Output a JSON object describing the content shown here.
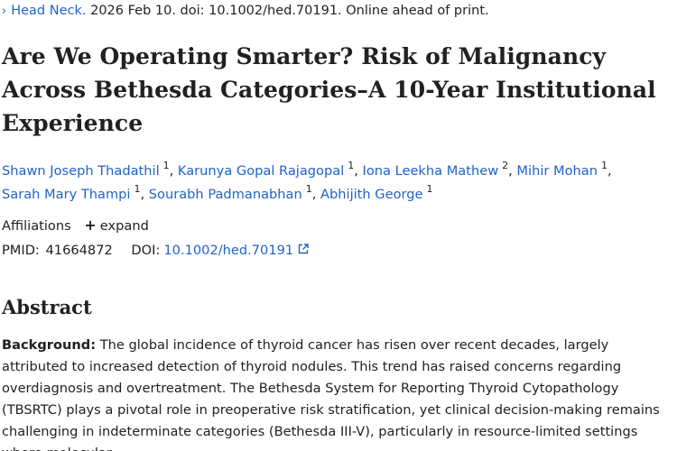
{
  "citation": {
    "chevron": "›",
    "journal": "Head Neck.",
    "details": "2026 Feb 10. doi: 10.1002/hed.70191. Online ahead of print."
  },
  "article": {
    "title": "Are We Operating Smarter? Risk of Malignancy Across Bethesda Categories–A 10-Year Institutional Experience"
  },
  "authors": [
    {
      "name": "Shawn Joseph Thadathil",
      "aff": "1"
    },
    {
      "name": "Karunya Gopal Rajagopal",
      "aff": "1"
    },
    {
      "name": "Iona Leekha Mathew",
      "aff": "2"
    },
    {
      "name": "Mihir Mohan",
      "aff": "1"
    },
    {
      "name": "Sarah Mary Thampi",
      "aff": "1"
    },
    {
      "name": "Sourabh Padmanabhan",
      "aff": "1"
    },
    {
      "name": "Abhijith George",
      "aff": "1"
    }
  ],
  "affiliations": {
    "label": "Affiliations",
    "plus": "+",
    "expand_label": "expand"
  },
  "identifiers": {
    "pmid_label": "PMID:",
    "pmid": "41664872",
    "doi_label": "DOI:",
    "doi": "10.1002/hed.70191",
    "external_icon": "external-link-icon"
  },
  "abstract": {
    "heading": "Abstract",
    "background_label": "Background:",
    "background_text": "The global incidence of thyroid cancer has risen over recent decades, largely attributed to increased detection of thyroid nodules. This trend has raised concerns regarding overdiagnosis and overtreatment. The Bethesda System for Reporting Thyroid Cytopathology (TBSRTC) plays a pivotal role in preoperative risk stratification, yet clinical decision-making remains challenging in indeterminate categories (Bethesda III-V), particularly in resource-limited settings where molecular"
  },
  "colors": {
    "link": "#2063c4",
    "text": "#212121"
  }
}
